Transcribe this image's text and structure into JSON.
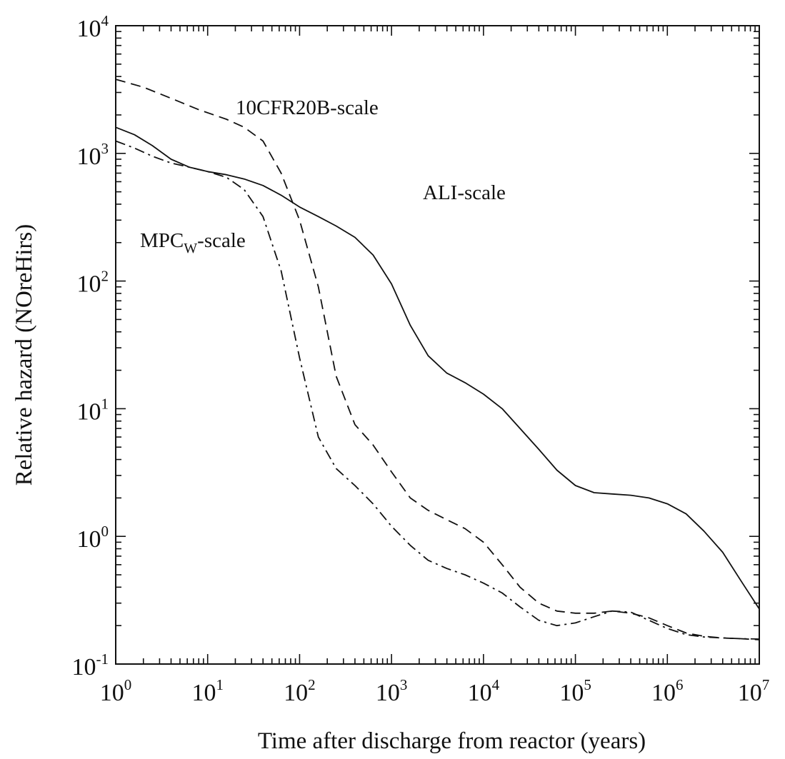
{
  "chart_data": {
    "type": "line",
    "x_scale": "log",
    "y_scale": "log",
    "xlim": [
      1,
      10000000
    ],
    "ylim": [
      0.1,
      10000
    ],
    "xlabel": "Time after discharge from reactor (years)",
    "ylabel": "Relative hazard (NOreHirs)",
    "grid": false,
    "x_ticks": [
      {
        "base": "10",
        "exp": "0",
        "value": 1
      },
      {
        "base": "10",
        "exp": "1",
        "value": 10
      },
      {
        "base": "10",
        "exp": "2",
        "value": 100
      },
      {
        "base": "10",
        "exp": "3",
        "value": 1000
      },
      {
        "base": "10",
        "exp": "4",
        "value": 10000
      },
      {
        "base": "10",
        "exp": "5",
        "value": 100000
      },
      {
        "base": "10",
        "exp": "6",
        "value": 1000000
      },
      {
        "base": "10",
        "exp": "7",
        "value": 10000000
      }
    ],
    "y_ticks": [
      {
        "base": "10",
        "exp": "-1",
        "value": 0.1
      },
      {
        "base": "10",
        "exp": "0",
        "value": 1
      },
      {
        "base": "10",
        "exp": "1",
        "value": 10
      },
      {
        "base": "10",
        "exp": "2",
        "value": 100
      },
      {
        "base": "10",
        "exp": "3",
        "value": 1000
      },
      {
        "base": "10",
        "exp": "4",
        "value": 10000
      }
    ],
    "series": [
      {
        "name": "ALI-scale",
        "label_main": "ALI-scale",
        "label_sub": "",
        "label_suffix": "",
        "dash": "solid",
        "x": [
          1,
          1.6,
          2.5,
          4,
          6.3,
          10,
          16,
          25,
          40,
          63,
          100,
          160,
          250,
          400,
          630,
          1000,
          1600,
          2500,
          4000,
          6300,
          10000,
          16000,
          25000,
          40000,
          63000,
          100000,
          160000,
          250000,
          400000,
          630000,
          1000000,
          1600000,
          2500000,
          4000000,
          6300000,
          10000000
        ],
        "y": [
          1600,
          1400,
          1150,
          900,
          780,
          720,
          680,
          630,
          560,
          470,
          380,
          320,
          270,
          220,
          160,
          95,
          45,
          26,
          19,
          16,
          13,
          10,
          7,
          4.8,
          3.3,
          2.5,
          2.2,
          2.15,
          2.1,
          2,
          1.8,
          1.5,
          1.1,
          0.75,
          0.45,
          0.27
        ]
      },
      {
        "name": "10CFR20B-scale",
        "label_main": "10CFR20B-scale",
        "label_sub": "",
        "label_suffix": "",
        "dash": "dashed",
        "x": [
          1,
          2,
          4,
          8,
          16,
          25,
          40,
          63,
          100,
          160,
          250,
          400,
          630,
          1000,
          1600,
          2500,
          4000,
          6300,
          10000,
          16000,
          25000,
          40000,
          63000,
          100000,
          160000,
          250000,
          400000,
          630000,
          1000000,
          1600000,
          2500000,
          4000000,
          6300000,
          10000000
        ],
        "y": [
          3800,
          3300,
          2700,
          2200,
          1850,
          1600,
          1250,
          700,
          300,
          90,
          18,
          7.5,
          5.2,
          3.2,
          2,
          1.6,
          1.35,
          1.15,
          0.9,
          0.6,
          0.4,
          0.3,
          0.26,
          0.25,
          0.25,
          0.26,
          0.25,
          0.23,
          0.2,
          0.175,
          0.165,
          0.16,
          0.158,
          0.155
        ]
      },
      {
        "name": "MPCw-scale",
        "label_main": "MPC",
        "label_sub": "W",
        "label_suffix": "-scale",
        "dash": "dashdot",
        "x": [
          1,
          1.6,
          2.5,
          4,
          6.3,
          10,
          16,
          25,
          40,
          63,
          100,
          160,
          250,
          400,
          630,
          1000,
          1600,
          2500,
          4000,
          6300,
          10000,
          16000,
          25000,
          40000,
          63000,
          100000,
          160000,
          250000,
          400000,
          630000,
          1000000,
          1600000,
          2500000,
          4000000,
          6300000,
          10000000
        ],
        "y": [
          1250,
          1100,
          950,
          840,
          780,
          720,
          650,
          520,
          320,
          120,
          25,
          6,
          3.4,
          2.5,
          1.8,
          1.2,
          0.85,
          0.65,
          0.56,
          0.5,
          0.43,
          0.36,
          0.28,
          0.22,
          0.2,
          0.21,
          0.235,
          0.26,
          0.255,
          0.22,
          0.19,
          0.17,
          0.163,
          0.16,
          0.158,
          0.157
        ]
      }
    ]
  }
}
